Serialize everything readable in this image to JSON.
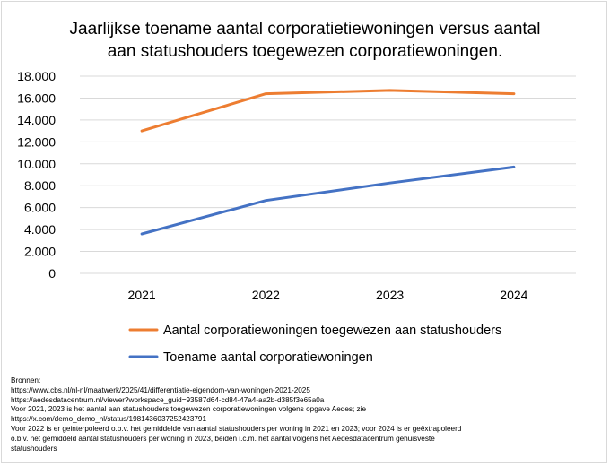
{
  "chart_data": {
    "type": "line",
    "title": "Jaarlijkse toename aantal corporatietiewoningen versus aantal aan statushouders toegewezen corporatiewoningen.",
    "title_lines": [
      "Jaarlijkse toename aantal corporatietiewoningen versus aantal",
      "aan statushouders toegewezen corporatiewoningen."
    ],
    "xlabel": "",
    "ylabel": "",
    "categories": [
      "2021",
      "2022",
      "2023",
      "2024"
    ],
    "ylim": [
      0,
      18000
    ],
    "yticks": [
      0,
      2000,
      4000,
      6000,
      8000,
      10000,
      12000,
      14000,
      16000,
      18000
    ],
    "ytick_labels": [
      "0",
      "2.000",
      "4.000",
      "6.000",
      "8.000",
      "10.000",
      "12.000",
      "14.000",
      "16.000",
      "18.000"
    ],
    "grid": true,
    "legend_position": "bottom",
    "series": [
      {
        "name": "Aantal corporatiewoningen toegewezen aan statushouders",
        "color": "#ED7D31",
        "values": [
          13000,
          16400,
          16700,
          16400
        ]
      },
      {
        "name": "Toename aantal corporatiewoningen",
        "color": "#4472C4",
        "values": [
          3600,
          6650,
          8250,
          9700
        ]
      }
    ]
  },
  "sources": {
    "lines": [
      "Bronnen:",
      "https://www.cbs.nl/nl-nl/maatwerk/2025/41/differentiatie-eigendom-van-woningen-2021-2025",
      "https://aedesdatacentrum.nl/viewer?workspace_guid=93587d64-cd84-47a4-aa2b-d385f3e65a0a",
      "Voor 2021, 2023 is het aantal aan statushouders toegewezen corporatiewoningen volgens opgave Aedes; zie",
      "https://x.com/demo_demo_nl/status/1981436037252423791",
      "Voor 2022 is er geinterpoleerd o.b.v. het gemiddelde van aantal statushouders per woning in 2021 en 2023; voor 2024 is er geëxtrapoleerd",
      "o.b.v. het gemiddeld aantal statushouders per woning in 2023, beiden i.c.m. het aantal volgens het Aedesdatacentrum gehuisveste",
      "statushouders"
    ]
  }
}
